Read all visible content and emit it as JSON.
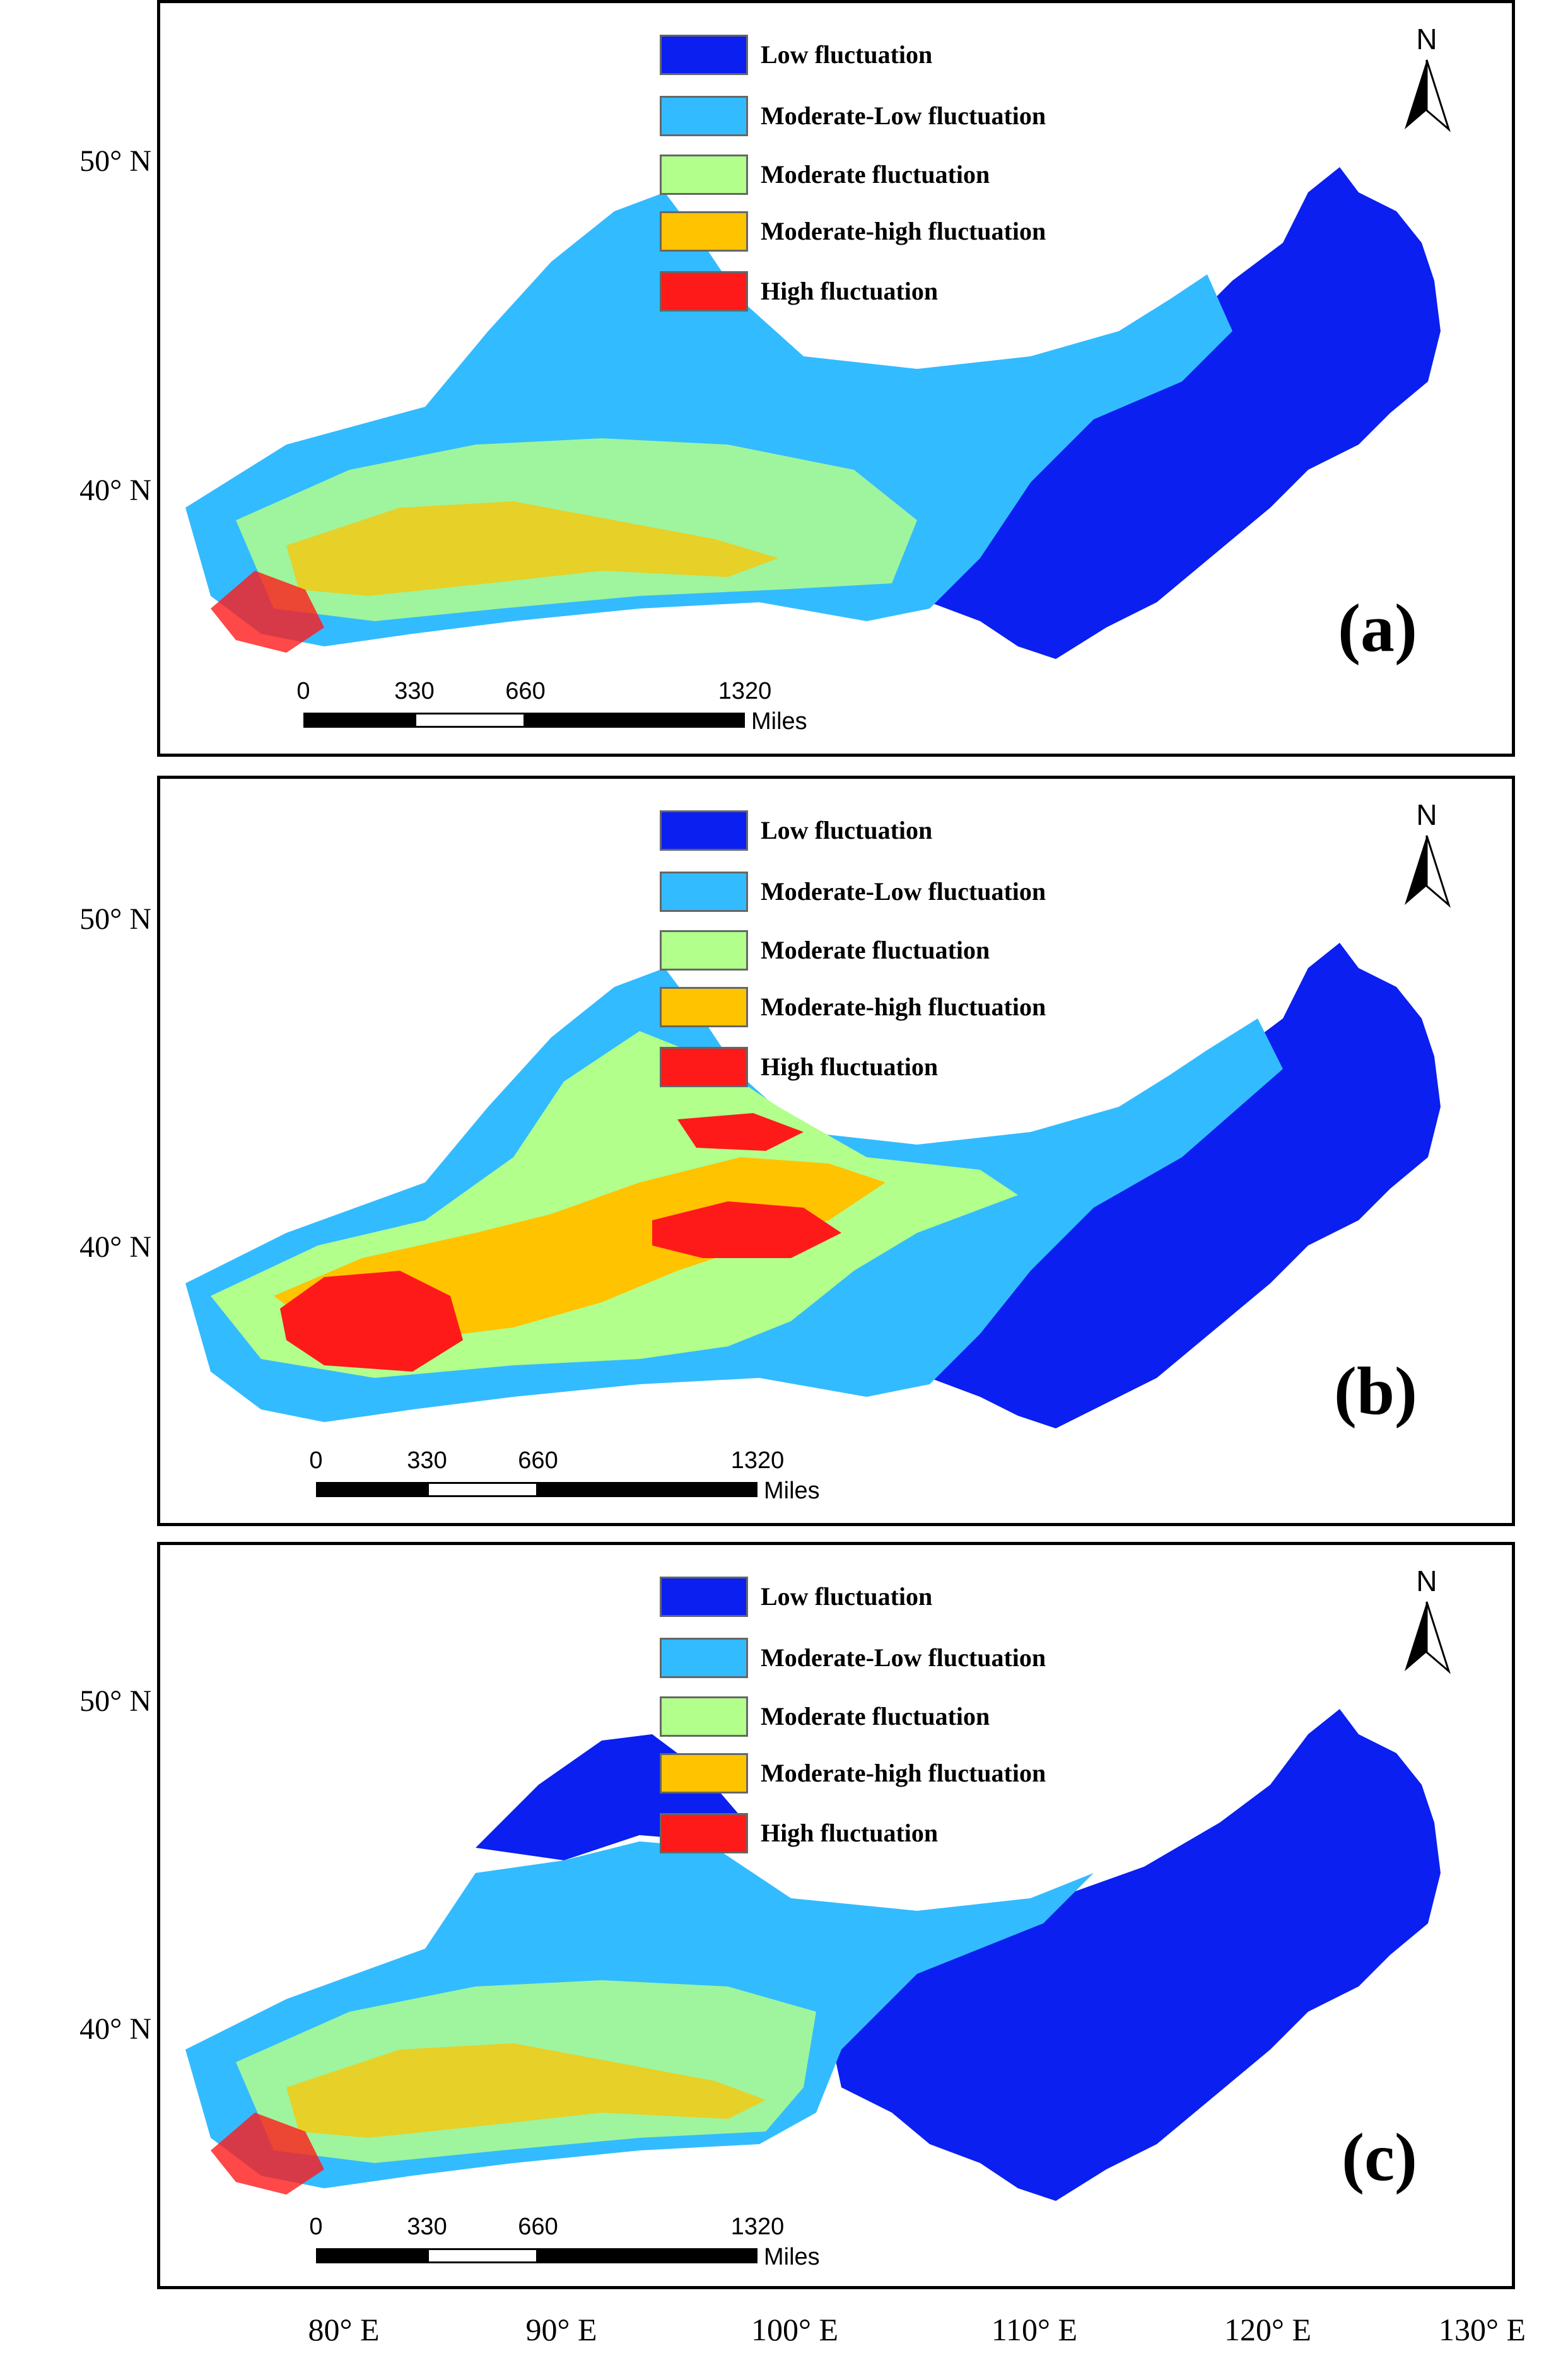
{
  "legend": [
    {
      "label": "Low fluctuation",
      "color": "#0a1ff0"
    },
    {
      "label": "Moderate-Low fluctuation",
      "color": "#33bbff"
    },
    {
      "label": "Moderate fluctuation",
      "color": "#b2ff8c"
    },
    {
      "label": "Moderate-high fluctuation",
      "color": "#ffc300"
    },
    {
      "label": "High fluctuation",
      "color": "#ff1a1a"
    }
  ],
  "north_label": "N",
  "scale": {
    "ticks": [
      "0",
      "330",
      "660",
      "1320"
    ],
    "unit": "Miles"
  },
  "panels": [
    {
      "label": "(a)"
    },
    {
      "label": "(b)"
    },
    {
      "label": "(c)"
    }
  ],
  "lat_labels": [
    "50° N",
    "40° N"
  ],
  "lon_labels": [
    "80° E",
    "90° E",
    "100° E",
    "110° E",
    "120° E",
    "130° E"
  ]
}
